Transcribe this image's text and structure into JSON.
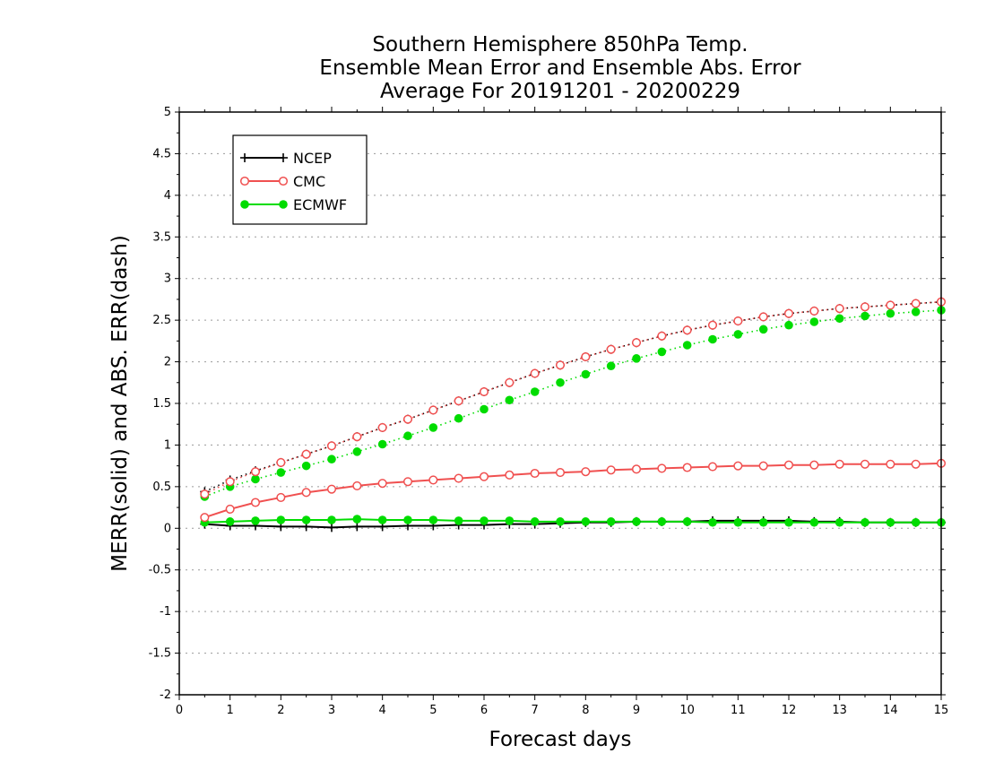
{
  "chart_data": {
    "type": "line",
    "title": [
      "Southern Hemisphere 850hPa Temp.",
      "Ensemble Mean Error and Ensemble Abs. Error",
      "Average For 20191201 - 20200229"
    ],
    "xlabel": "Forecast days",
    "ylabel": "MERR(solid) and ABS. ERR(dash)",
    "xlim": [
      0,
      15
    ],
    "ylim": [
      -2,
      5
    ],
    "xticks": [
      "0",
      "1",
      "2",
      "3",
      "4",
      "5",
      "6",
      "7",
      "8",
      "9",
      "10",
      "11",
      "12",
      "13",
      "14",
      "15"
    ],
    "yticks": [
      "-2",
      "-1.5",
      "-1",
      "-0.5",
      "0",
      "0.5",
      "1",
      "1.5",
      "2",
      "2.5",
      "3",
      "3.5",
      "4",
      "4.5",
      "5"
    ],
    "grid": "horizontal-dotted",
    "legend_position": "top-left",
    "x": [
      0.5,
      1,
      1.5,
      2,
      2.5,
      3,
      3.5,
      4,
      4.5,
      5,
      5.5,
      6,
      6.5,
      7,
      7.5,
      8,
      8.5,
      9,
      9.5,
      10,
      10.5,
      11,
      11.5,
      12,
      12.5,
      13,
      13.5,
      14,
      14.5,
      15
    ],
    "series": [
      {
        "name": "NCEP",
        "color": "#000000",
        "marker": "plus",
        "merr": [
          0.05,
          0.03,
          0.03,
          0.02,
          0.02,
          0.01,
          0.02,
          0.02,
          0.03,
          0.03,
          0.04,
          0.04,
          0.05,
          0.05,
          0.06,
          0.07,
          0.07,
          0.08,
          0.08,
          0.08,
          0.09,
          0.09,
          0.09,
          0.09,
          0.08,
          0.08,
          0.07,
          0.07,
          0.07,
          0.07
        ],
        "abs_err": [
          0.44,
          0.58,
          0.69,
          0.79,
          0.89,
          0.99,
          1.1,
          1.21,
          1.31,
          1.42,
          1.53,
          1.64,
          1.75,
          1.86,
          1.96,
          2.06,
          2.15,
          2.23,
          2.31,
          2.38,
          2.44,
          2.49,
          2.54,
          2.58,
          2.61,
          2.64,
          2.66,
          2.68,
          2.7,
          2.72
        ]
      },
      {
        "name": "CMC",
        "color": "#f05050",
        "marker": "open-circle",
        "merr": [
          0.13,
          0.23,
          0.31,
          0.37,
          0.43,
          0.47,
          0.51,
          0.54,
          0.56,
          0.58,
          0.6,
          0.62,
          0.64,
          0.66,
          0.67,
          0.68,
          0.7,
          0.71,
          0.72,
          0.73,
          0.74,
          0.75,
          0.75,
          0.76,
          0.76,
          0.77,
          0.77,
          0.77,
          0.77,
          0.78
        ],
        "abs_err": [
          0.41,
          0.56,
          0.68,
          0.79,
          0.89,
          0.99,
          1.1,
          1.21,
          1.31,
          1.42,
          1.53,
          1.64,
          1.75,
          1.86,
          1.96,
          2.06,
          2.15,
          2.23,
          2.31,
          2.38,
          2.44,
          2.49,
          2.54,
          2.58,
          2.61,
          2.64,
          2.66,
          2.68,
          2.7,
          2.72
        ]
      },
      {
        "name": "ECMWF",
        "color": "#00dc00",
        "marker": "filled-circle",
        "merr": [
          0.07,
          0.08,
          0.09,
          0.1,
          0.1,
          0.1,
          0.11,
          0.1,
          0.1,
          0.1,
          0.09,
          0.09,
          0.09,
          0.08,
          0.08,
          0.08,
          0.08,
          0.08,
          0.08,
          0.08,
          0.07,
          0.07,
          0.07,
          0.07,
          0.07,
          0.07,
          0.07,
          0.07,
          0.07,
          0.07
        ],
        "abs_err": [
          0.38,
          0.5,
          0.59,
          0.67,
          0.75,
          0.83,
          0.92,
          1.01,
          1.11,
          1.21,
          1.32,
          1.43,
          1.54,
          1.64,
          1.75,
          1.85,
          1.95,
          2.04,
          2.12,
          2.2,
          2.27,
          2.33,
          2.39,
          2.44,
          2.48,
          2.52,
          2.55,
          2.58,
          2.6,
          2.62
        ]
      }
    ]
  }
}
